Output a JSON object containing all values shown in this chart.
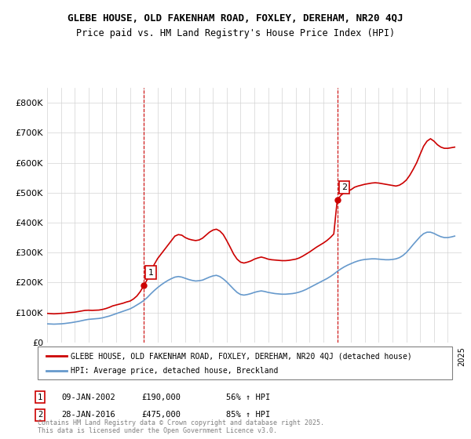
{
  "title_line1": "GLEBE HOUSE, OLD FAKENHAM ROAD, FOXLEY, DEREHAM, NR20 4QJ",
  "title_line2": "Price paid vs. HM Land Registry's House Price Index (HPI)",
  "ylim": [
    0,
    850000
  ],
  "yticks": [
    0,
    100000,
    200000,
    300000,
    400000,
    500000,
    600000,
    700000,
    800000
  ],
  "ytick_labels": [
    "£0",
    "£100K",
    "£200K",
    "£300K",
    "£400K",
    "£500K",
    "£600K",
    "£700K",
    "£800K"
  ],
  "red_color": "#cc0000",
  "blue_color": "#6699cc",
  "legend_red_label": "GLEBE HOUSE, OLD FAKENHAM ROAD, FOXLEY, DEREHAM, NR20 4QJ (detached house)",
  "legend_blue_label": "HPI: Average price, detached house, Breckland",
  "marker1_label": "1",
  "marker1_date": "09-JAN-2002",
  "marker1_price": "£190,000",
  "marker1_pct": "56% ↑ HPI",
  "marker2_label": "2",
  "marker2_date": "28-JAN-2016",
  "marker2_price": "£475,000",
  "marker2_pct": "85% ↑ HPI",
  "footnote": "Contains HM Land Registry data © Crown copyright and database right 2025.\nThis data is licensed under the Open Government Licence v3.0.",
  "red_data": {
    "years": [
      1995.0,
      1995.25,
      1995.5,
      1995.75,
      1996.0,
      1996.25,
      1996.5,
      1996.75,
      1997.0,
      1997.25,
      1997.5,
      1997.75,
      1998.0,
      1998.25,
      1998.5,
      1998.75,
      1999.0,
      1999.25,
      1999.5,
      1999.75,
      2000.0,
      2000.25,
      2000.5,
      2000.75,
      2001.0,
      2001.25,
      2001.5,
      2001.75,
      2002.0,
      2002.25,
      2002.5,
      2002.75,
      2003.0,
      2003.25,
      2003.5,
      2003.75,
      2004.0,
      2004.25,
      2004.5,
      2004.75,
      2005.0,
      2005.25,
      2005.5,
      2005.75,
      2006.0,
      2006.25,
      2006.5,
      2006.75,
      2007.0,
      2007.25,
      2007.5,
      2007.75,
      2008.0,
      2008.25,
      2008.5,
      2008.75,
      2009.0,
      2009.25,
      2009.5,
      2009.75,
      2010.0,
      2010.25,
      2010.5,
      2010.75,
      2011.0,
      2011.25,
      2011.5,
      2011.75,
      2012.0,
      2012.25,
      2012.5,
      2012.75,
      2013.0,
      2013.25,
      2013.5,
      2013.75,
      2014.0,
      2014.25,
      2014.5,
      2014.75,
      2015.0,
      2015.25,
      2015.5,
      2015.75,
      2016.0,
      2016.25,
      2016.5,
      2016.75,
      2017.0,
      2017.25,
      2017.5,
      2017.75,
      2018.0,
      2018.25,
      2018.5,
      2018.75,
      2019.0,
      2019.25,
      2019.5,
      2019.75,
      2020.0,
      2020.25,
      2020.5,
      2020.75,
      2021.0,
      2021.25,
      2021.5,
      2021.75,
      2022.0,
      2022.25,
      2022.5,
      2022.75,
      2023.0,
      2023.25,
      2023.5,
      2023.75,
      2024.0,
      2024.25,
      2024.5
    ],
    "values": [
      97000,
      96000,
      95500,
      96000,
      97000,
      97500,
      99000,
      100000,
      101000,
      103000,
      105000,
      107000,
      107500,
      107000,
      107500,
      108000,
      110000,
      113000,
      117000,
      122000,
      125000,
      128000,
      131000,
      135000,
      138000,
      145000,
      155000,
      170000,
      190000,
      210000,
      235000,
      260000,
      280000,
      295000,
      310000,
      325000,
      340000,
      355000,
      360000,
      358000,
      350000,
      345000,
      342000,
      340000,
      342000,
      348000,
      358000,
      368000,
      375000,
      378000,
      372000,
      360000,
      340000,
      318000,
      295000,
      278000,
      268000,
      265000,
      268000,
      272000,
      278000,
      282000,
      285000,
      282000,
      278000,
      276000,
      275000,
      274000,
      273000,
      273000,
      274000,
      276000,
      278000,
      282000,
      288000,
      295000,
      302000,
      310000,
      318000,
      325000,
      332000,
      340000,
      350000,
      362000,
      475000,
      490000,
      500000,
      505000,
      510000,
      518000,
      522000,
      525000,
      528000,
      530000,
      532000,
      533000,
      532000,
      530000,
      528000,
      526000,
      524000,
      522000,
      525000,
      532000,
      542000,
      558000,
      578000,
      600000,
      628000,
      655000,
      672000,
      680000,
      672000,
      660000,
      652000,
      648000,
      648000,
      650000,
      652000
    ]
  },
  "blue_data": {
    "years": [
      1995.0,
      1995.25,
      1995.5,
      1995.75,
      1996.0,
      1996.25,
      1996.5,
      1996.75,
      1997.0,
      1997.25,
      1997.5,
      1997.75,
      1998.0,
      1998.25,
      1998.5,
      1998.75,
      1999.0,
      1999.25,
      1999.5,
      1999.75,
      2000.0,
      2000.25,
      2000.5,
      2000.75,
      2001.0,
      2001.25,
      2001.5,
      2001.75,
      2002.0,
      2002.25,
      2002.5,
      2002.75,
      2003.0,
      2003.25,
      2003.5,
      2003.75,
      2004.0,
      2004.25,
      2004.5,
      2004.75,
      2005.0,
      2005.25,
      2005.5,
      2005.75,
      2006.0,
      2006.25,
      2006.5,
      2006.75,
      2007.0,
      2007.25,
      2007.5,
      2007.75,
      2008.0,
      2008.25,
      2008.5,
      2008.75,
      2009.0,
      2009.25,
      2009.5,
      2009.75,
      2010.0,
      2010.25,
      2010.5,
      2010.75,
      2011.0,
      2011.25,
      2011.5,
      2011.75,
      2012.0,
      2012.25,
      2012.5,
      2012.75,
      2013.0,
      2013.25,
      2013.5,
      2013.75,
      2014.0,
      2014.25,
      2014.5,
      2014.75,
      2015.0,
      2015.25,
      2015.5,
      2015.75,
      2016.0,
      2016.25,
      2016.5,
      2016.75,
      2017.0,
      2017.25,
      2017.5,
      2017.75,
      2018.0,
      2018.25,
      2018.5,
      2018.75,
      2019.0,
      2019.25,
      2019.5,
      2019.75,
      2020.0,
      2020.25,
      2020.5,
      2020.75,
      2021.0,
      2021.25,
      2021.5,
      2021.75,
      2022.0,
      2022.25,
      2022.5,
      2022.75,
      2023.0,
      2023.25,
      2023.5,
      2023.75,
      2024.0,
      2024.25,
      2024.5
    ],
    "values": [
      62000,
      61500,
      61000,
      61500,
      62000,
      63000,
      64500,
      66000,
      68000,
      70000,
      72500,
      75000,
      77000,
      78000,
      79000,
      80000,
      82000,
      85000,
      88000,
      92000,
      96000,
      100000,
      104000,
      108000,
      112000,
      118000,
      125000,
      132000,
      140000,
      150000,
      162000,
      173000,
      183000,
      192000,
      200000,
      207000,
      213000,
      218000,
      220000,
      218000,
      214000,
      210000,
      207000,
      205000,
      206000,
      208000,
      213000,
      218000,
      222000,
      224000,
      220000,
      212000,
      202000,
      190000,
      178000,
      167000,
      160000,
      158000,
      160000,
      163000,
      167000,
      170000,
      172000,
      170000,
      167000,
      165000,
      163000,
      162000,
      161000,
      161000,
      162000,
      163000,
      165000,
      168000,
      172000,
      177000,
      183000,
      189000,
      195000,
      201000,
      207000,
      213000,
      220000,
      228000,
      237000,
      245000,
      252000,
      258000,
      263000,
      268000,
      272000,
      275000,
      277000,
      278000,
      279000,
      279000,
      278000,
      277000,
      276000,
      276000,
      277000,
      279000,
      283000,
      290000,
      300000,
      313000,
      327000,
      340000,
      353000,
      363000,
      368000,
      368000,
      364000,
      358000,
      353000,
      350000,
      350000,
      352000,
      355000
    ]
  },
  "marker1_x": 2002.0,
  "marker1_y": 190000,
  "marker2_x": 2016.0,
  "marker2_y": 475000,
  "vline1_x": 2002.0,
  "vline2_x": 2016.0,
  "xmin": 1995,
  "xmax": 2025
}
